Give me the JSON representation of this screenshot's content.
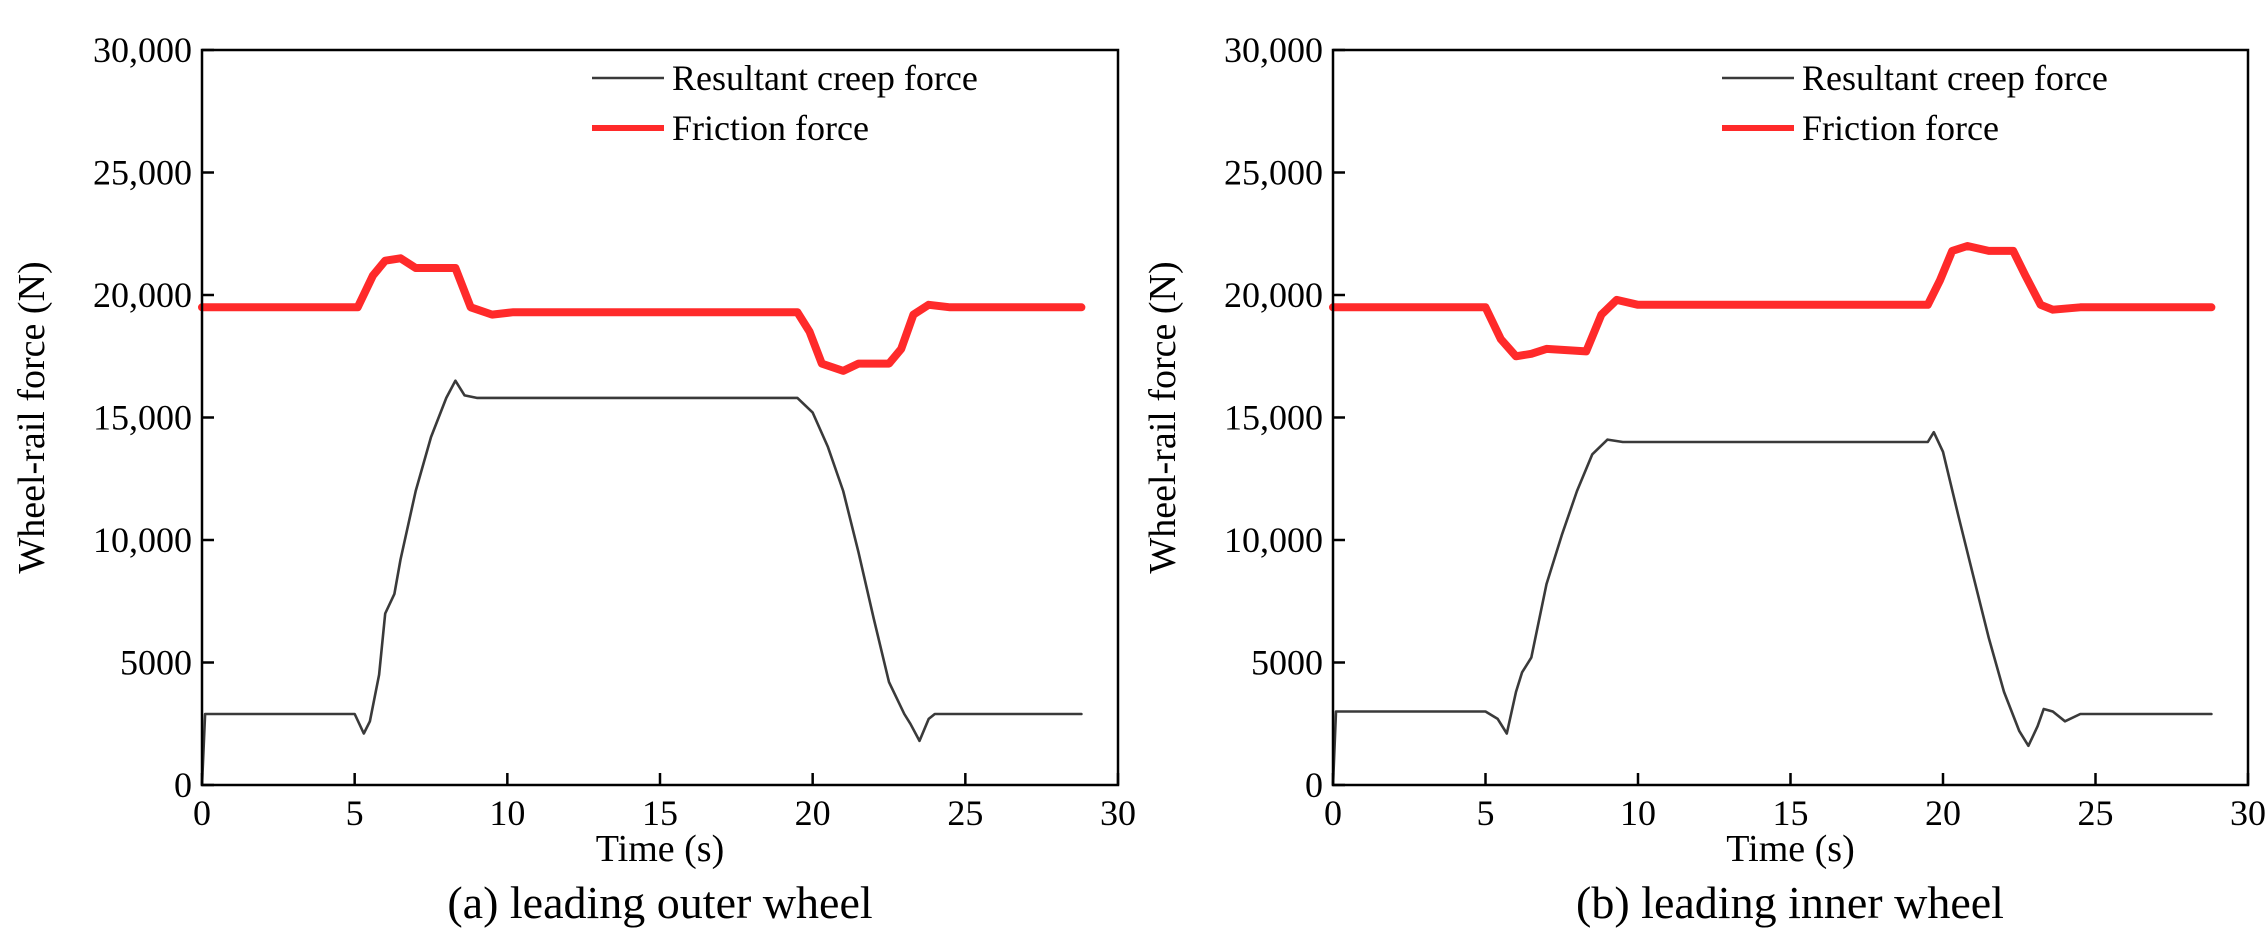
{
  "chart_data": [
    {
      "type": "line",
      "caption": "(a) leading outer wheel",
      "xlabel": "Time (s)",
      "ylabel": "Wheel-rail force (N)",
      "xlim": [
        0,
        30
      ],
      "ylim": [
        0,
        30000
      ],
      "xticks": [
        0,
        5,
        10,
        15,
        20,
        25,
        30
      ],
      "xtick_labels": [
        "0",
        "5",
        "10",
        "15",
        "20",
        "25",
        "30"
      ],
      "yticks": [
        0,
        5000,
        10000,
        15000,
        20000,
        25000,
        30000
      ],
      "ytick_labels": [
        "0",
        "5000",
        "10,000",
        "15,000",
        "20,000",
        "25,000",
        "30,000"
      ],
      "grid": false,
      "legend_position": "top-right",
      "series": [
        {
          "name": "Resultant creep force",
          "color": "#3a3a3a",
          "points": [
            [
              0,
              0
            ],
            [
              0.1,
              2900
            ],
            [
              5.0,
              2900
            ],
            [
              5.3,
              2100
            ],
            [
              5.5,
              2600
            ],
            [
              5.8,
              4500
            ],
            [
              6.0,
              7000
            ],
            [
              6.3,
              7800
            ],
            [
              6.5,
              9200
            ],
            [
              7.0,
              12000
            ],
            [
              7.5,
              14200
            ],
            [
              8.0,
              15800
            ],
            [
              8.3,
              16500
            ],
            [
              8.6,
              15900
            ],
            [
              9.0,
              15800
            ],
            [
              19.5,
              15800
            ],
            [
              20.0,
              15200
            ],
            [
              20.5,
              13800
            ],
            [
              21.0,
              12000
            ],
            [
              21.5,
              9500
            ],
            [
              22.0,
              6800
            ],
            [
              22.5,
              4200
            ],
            [
              23.0,
              2900
            ],
            [
              23.2,
              2500
            ],
            [
              23.5,
              1800
            ],
            [
              23.8,
              2700
            ],
            [
              24.0,
              2900
            ],
            [
              28.8,
              2900
            ]
          ]
        },
        {
          "name": "Friction force",
          "color": "#ff2a2a",
          "points": [
            [
              0,
              19500
            ],
            [
              5.1,
              19500
            ],
            [
              5.6,
              20800
            ],
            [
              6.0,
              21400
            ],
            [
              6.5,
              21500
            ],
            [
              7.0,
              21100
            ],
            [
              8.3,
              21100
            ],
            [
              8.8,
              19500
            ],
            [
              9.5,
              19200
            ],
            [
              10.2,
              19300
            ],
            [
              19.5,
              19300
            ],
            [
              19.9,
              18500
            ],
            [
              20.3,
              17200
            ],
            [
              21.0,
              16900
            ],
            [
              21.5,
              17200
            ],
            [
              22.5,
              17200
            ],
            [
              22.9,
              17800
            ],
            [
              23.3,
              19200
            ],
            [
              23.8,
              19600
            ],
            [
              24.5,
              19500
            ],
            [
              28.8,
              19500
            ]
          ]
        }
      ]
    },
    {
      "type": "line",
      "caption": "(b) leading inner wheel",
      "xlabel": "Time (s)",
      "ylabel": "Wheel-rail force (N)",
      "xlim": [
        0,
        30
      ],
      "ylim": [
        0,
        30000
      ],
      "xticks": [
        0,
        5,
        10,
        15,
        20,
        25,
        30
      ],
      "xtick_labels": [
        "0",
        "5",
        "10",
        "15",
        "20",
        "25",
        "30"
      ],
      "yticks": [
        0,
        5000,
        10000,
        15000,
        20000,
        25000,
        30000
      ],
      "ytick_labels": [
        "0",
        "5000",
        "10,000",
        "15,000",
        "20,000",
        "25,000",
        "30,000"
      ],
      "grid": false,
      "legend_position": "top-right",
      "series": [
        {
          "name": "Resultant creep force",
          "color": "#3a3a3a",
          "points": [
            [
              0,
              0
            ],
            [
              0.1,
              3000
            ],
            [
              5.0,
              3000
            ],
            [
              5.4,
              2700
            ],
            [
              5.7,
              2100
            ],
            [
              6.0,
              3800
            ],
            [
              6.2,
              4600
            ],
            [
              6.5,
              5200
            ],
            [
              7.0,
              8200
            ],
            [
              7.5,
              10200
            ],
            [
              8.0,
              12000
            ],
            [
              8.5,
              13500
            ],
            [
              9.0,
              14100
            ],
            [
              9.5,
              14000
            ],
            [
              19.5,
              14000
            ],
            [
              19.7,
              14400
            ],
            [
              20.0,
              13600
            ],
            [
              20.5,
              11000
            ],
            [
              21.0,
              8500
            ],
            [
              21.5,
              6000
            ],
            [
              22.0,
              3800
            ],
            [
              22.5,
              2200
            ],
            [
              22.8,
              1600
            ],
            [
              23.1,
              2400
            ],
            [
              23.3,
              3100
            ],
            [
              23.6,
              3000
            ],
            [
              24.0,
              2600
            ],
            [
              24.5,
              2900
            ],
            [
              28.8,
              2900
            ]
          ]
        },
        {
          "name": "Friction force",
          "color": "#ff2a2a",
          "points": [
            [
              0,
              19500
            ],
            [
              5.0,
              19500
            ],
            [
              5.5,
              18200
            ],
            [
              6.0,
              17500
            ],
            [
              6.5,
              17600
            ],
            [
              7.0,
              17800
            ],
            [
              8.3,
              17700
            ],
            [
              8.8,
              19200
            ],
            [
              9.3,
              19800
            ],
            [
              10.0,
              19600
            ],
            [
              19.5,
              19600
            ],
            [
              19.9,
              20600
            ],
            [
              20.3,
              21800
            ],
            [
              20.8,
              22000
            ],
            [
              21.5,
              21800
            ],
            [
              22.3,
              21800
            ],
            [
              22.7,
              20800
            ],
            [
              23.2,
              19600
            ],
            [
              23.6,
              19400
            ],
            [
              24.5,
              19500
            ],
            [
              28.8,
              19500
            ]
          ]
        }
      ]
    }
  ]
}
